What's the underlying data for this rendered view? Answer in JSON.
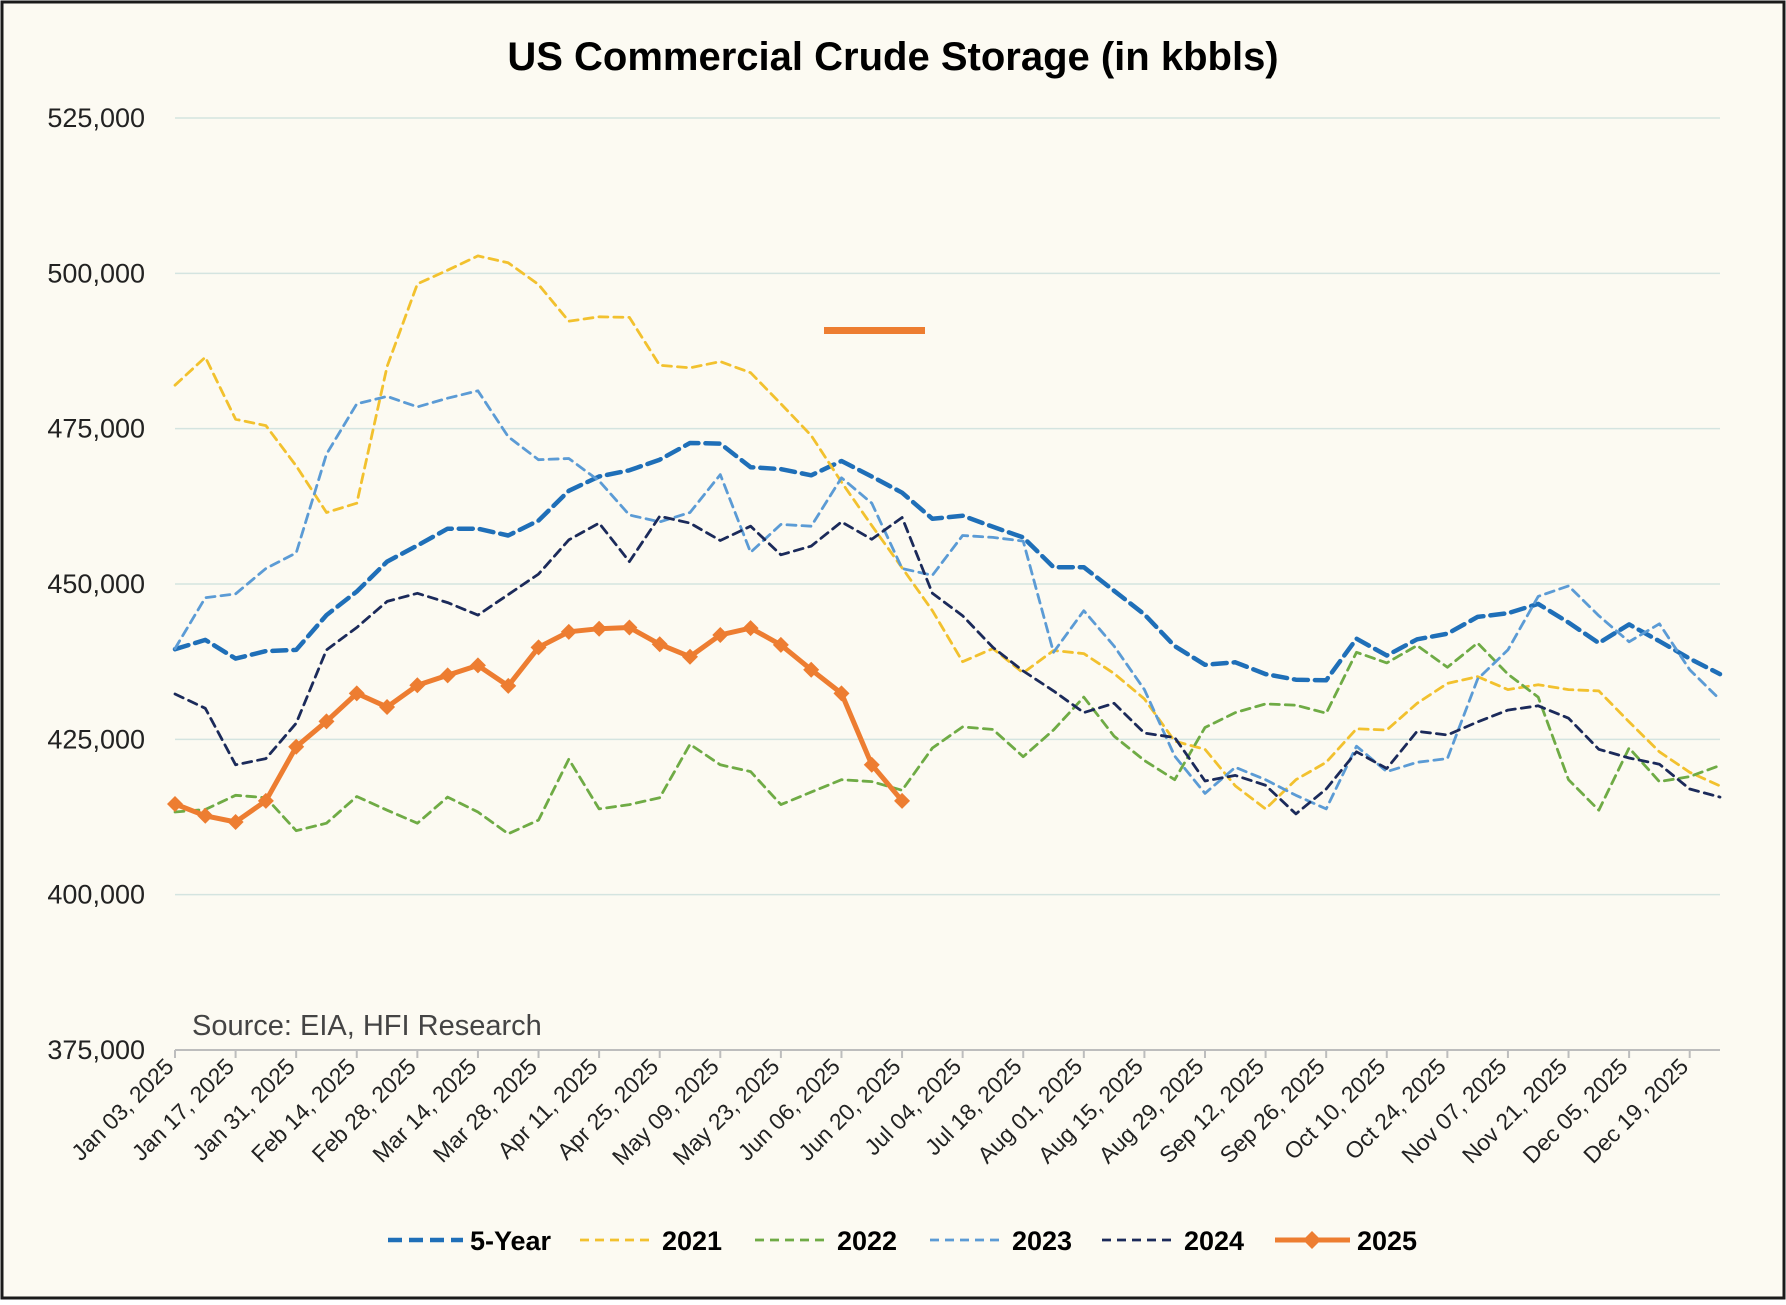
{
  "chart_data": {
    "type": "line",
    "title": "US Commercial Crude Storage (in kbbls)",
    "source": "Source: EIA, HFI Research",
    "ylim": [
      375000,
      525000
    ],
    "y_ticks": [
      375000,
      400000,
      425000,
      450000,
      475000,
      500000,
      525000
    ],
    "y_tick_labels": [
      "375,000",
      "400,000",
      "425,000",
      "450,000",
      "475,000",
      "500,000",
      "525,000"
    ],
    "x_tick_labels": [
      "Jan 03, 2025",
      "Jan 17, 2025",
      "Jan 31, 2025",
      "Feb 14, 2025",
      "Feb 28, 2025",
      "Mar 14, 2025",
      "Mar 28, 2025",
      "Apr 11, 2025",
      "Apr 25, 2025",
      "May 09, 2025",
      "May 23, 2025",
      "Jun 06, 2025",
      "Jun 20, 2025",
      "Jul 04, 2025",
      "Jul 18, 2025",
      "Aug 01, 2025",
      "Aug 15, 2025",
      "Aug 29, 2025",
      "Sep 12, 2025",
      "Sep 26, 2025",
      "Oct 10, 2025",
      "Oct 24, 2025",
      "Nov 07, 2025",
      "Nov 21, 2025",
      "Dec 05, 2025",
      "Dec 19, 2025"
    ],
    "x_week_count": 52,
    "grid": true,
    "legend_position": "bottom",
    "annotation_marker_value": 490800,
    "series": [
      {
        "name": "5-Year",
        "color": "#1F6FB8",
        "style": "dashed-bold",
        "values": [
          439500,
          441000,
          438000,
          439200,
          439400,
          445000,
          448800,
          453600,
          456200,
          458900,
          458900,
          457800,
          460200,
          465000,
          467300,
          468300,
          470000,
          472700,
          472600,
          468800,
          468500,
          467500,
          469800,
          467300,
          464700,
          460500,
          461000,
          459200,
          457500,
          452700,
          452700,
          448900,
          445100,
          440000,
          437000,
          437400,
          435500,
          434600,
          434500,
          441200,
          438500,
          441100,
          442000,
          444700,
          445300,
          446800,
          443800,
          440500,
          443500,
          440800,
          438000,
          435500
        ]
      },
      {
        "name": "2021",
        "color": "#F2C12E",
        "style": "dashed",
        "values": [
          482000,
          486500,
          476500,
          475500,
          469000,
          461500,
          463000,
          485000,
          498300,
          500500,
          502800,
          501700,
          498200,
          492300,
          493000,
          492900,
          485200,
          484800,
          485800,
          484000,
          479000,
          473900,
          466400,
          459400,
          452600,
          445700,
          437500,
          439600,
          435700,
          439300,
          438800,
          435600,
          431500,
          424700,
          423400,
          417500,
          413800,
          418500,
          421300,
          426700,
          426500,
          430800,
          434000,
          435100,
          433000,
          433800,
          433000,
          432800,
          427800,
          423000,
          419700,
          417500
        ]
      },
      {
        "name": "2022",
        "color": "#6FAB45",
        "style": "dashed",
        "values": [
          413300,
          413700,
          416000,
          415600,
          410300,
          411500,
          415800,
          413600,
          411500,
          415700,
          413300,
          409800,
          412000,
          421800,
          413800,
          414500,
          415600,
          424200,
          420900,
          419800,
          414500,
          416500,
          418500,
          418200,
          416800,
          423600,
          427000,
          426600,
          422200,
          426500,
          431800,
          425500,
          421600,
          418500,
          426900,
          429300,
          430700,
          430500,
          429200,
          439000,
          437300,
          440100,
          436600,
          440500,
          435500,
          431800,
          418500,
          413600,
          423600,
          418200,
          419000,
          420800
        ]
      },
      {
        "name": "2023",
        "color": "#5B9BD5",
        "style": "dashed",
        "values": [
          439600,
          447800,
          448400,
          452500,
          455000,
          470900,
          479000,
          480200,
          478500,
          479900,
          481100,
          473700,
          470000,
          470200,
          466600,
          461100,
          460000,
          461500,
          467600,
          455100,
          459600,
          459300,
          467100,
          463000,
          452500,
          451400,
          457800,
          457500,
          456900,
          439000,
          445700,
          440000,
          433000,
          422300,
          416300,
          420500,
          418500,
          416000,
          413800,
          423900,
          419800,
          421300,
          421900,
          434700,
          439400,
          448000,
          449700,
          444900,
          440700,
          443600,
          436200,
          431400
        ]
      },
      {
        "name": "2024",
        "color": "#1B2A5A",
        "style": "dashed",
        "values": [
          432300,
          430000,
          420900,
          421900,
          427600,
          439400,
          443000,
          447200,
          448500,
          447000,
          445000,
          448300,
          451600,
          457100,
          459800,
          453600,
          460900,
          459800,
          457000,
          459300,
          454700,
          456100,
          460000,
          457200,
          460700,
          448500,
          444900,
          439800,
          436000,
          432800,
          429300,
          430800,
          426000,
          425300,
          418300,
          419200,
          417600,
          413000,
          417000,
          423000,
          420300,
          426300,
          425700,
          427800,
          429700,
          430400,
          428400,
          423400,
          422000,
          421000,
          417000,
          415700
        ]
      },
      {
        "name": "2025",
        "color": "#ED7D31",
        "style": "solid-marker",
        "values": [
          414600,
          412700,
          411700,
          415100,
          423800,
          427900,
          432400,
          430200,
          433700,
          435300,
          436900,
          433600,
          439800,
          442300,
          442800,
          443000,
          440300,
          438300,
          441800,
          442900,
          440200,
          436200,
          432400,
          420900,
          415100
        ]
      }
    ]
  }
}
